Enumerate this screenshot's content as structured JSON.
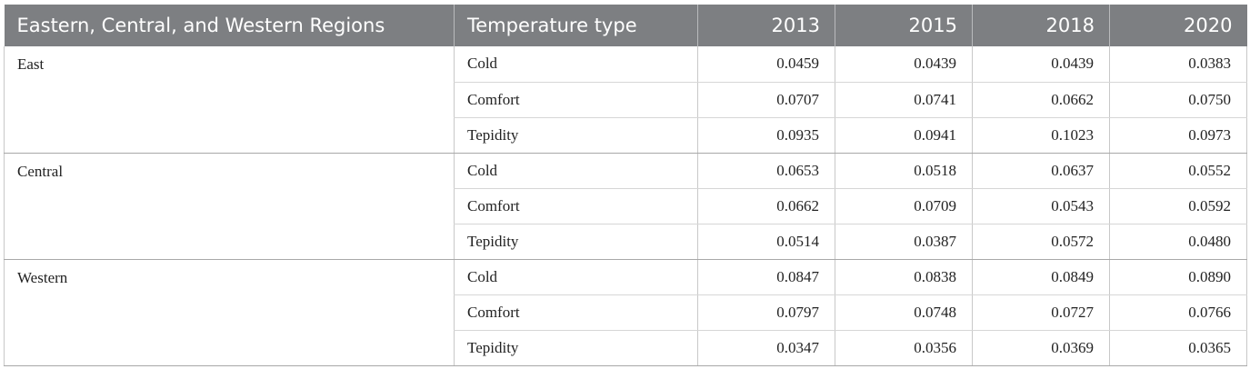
{
  "table": {
    "headers": [
      "Eastern, Central, and Western Regions",
      "Temperature type",
      "2013",
      "2015",
      "2018",
      "2020"
    ],
    "groups": [
      {
        "region": "East",
        "rows": [
          {
            "type": "Cold",
            "values": [
              "0.0459",
              "0.0439",
              "0.0439",
              "0.0383"
            ]
          },
          {
            "type": "Comfort",
            "values": [
              "0.0707",
              "0.0741",
              "0.0662",
              "0.0750"
            ]
          },
          {
            "type": "Tepidity",
            "values": [
              "0.0935",
              "0.0941",
              "0.1023",
              "0.0973"
            ]
          }
        ]
      },
      {
        "region": "Central",
        "rows": [
          {
            "type": "Cold",
            "values": [
              "0.0653",
              "0.0518",
              "0.0637",
              "0.0552"
            ]
          },
          {
            "type": "Comfort",
            "values": [
              "0.0662",
              "0.0709",
              "0.0543",
              "0.0592"
            ]
          },
          {
            "type": "Tepidity",
            "values": [
              "0.0514",
              "0.0387",
              "0.0572",
              "0.0480"
            ]
          }
        ]
      },
      {
        "region": "Western",
        "rows": [
          {
            "type": "Cold",
            "values": [
              "0.0847",
              "0.0838",
              "0.0849",
              "0.0890"
            ]
          },
          {
            "type": "Comfort",
            "values": [
              "0.0797",
              "0.0748",
              "0.0727",
              "0.0766"
            ]
          },
          {
            "type": "Tepidity",
            "values": [
              "0.0347",
              "0.0356",
              "0.0369",
              "0.0365"
            ]
          }
        ]
      }
    ]
  }
}
